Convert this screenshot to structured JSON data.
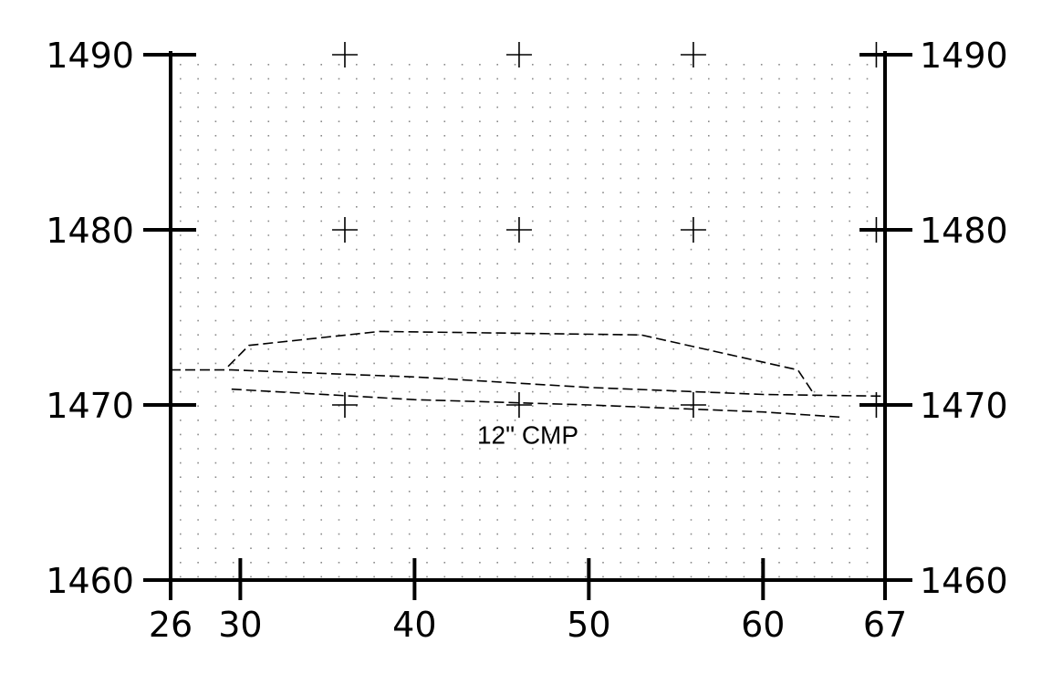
{
  "chart_data": {
    "type": "line",
    "title": "",
    "xlabel": "",
    "ylabel": "",
    "xlim": [
      26,
      67
    ],
    "ylim": [
      1460,
      1490
    ],
    "x_ticks_major": [
      26,
      30,
      40,
      50,
      60,
      67
    ],
    "x_tick_labels": [
      "26",
      "30",
      "40",
      "50",
      "60",
      "67"
    ],
    "y_ticks": [
      1460,
      1470,
      1480,
      1490
    ],
    "y_tick_labels_left": [
      "1460",
      "1470",
      "1480",
      "1490"
    ],
    "y_tick_labels_right": [
      "1460",
      "1470",
      "1480",
      "1490"
    ],
    "cross_marks_x": [
      36,
      46,
      56,
      66.5
    ],
    "cross_marks_y": [
      1470,
      1480,
      1490
    ],
    "grid": "dotted",
    "line_style": "dashed",
    "series": [
      {
        "values": [
          [
            26,
            1472.0
          ],
          [
            29.5,
            1472.0
          ],
          [
            40,
            1471.6
          ],
          [
            50,
            1471.0
          ],
          [
            60,
            1470.6
          ],
          [
            67,
            1470.5
          ]
        ]
      },
      {
        "values": [
          [
            29.3,
            1472.2
          ],
          [
            30.5,
            1473.4
          ],
          [
            38,
            1474.2
          ],
          [
            53,
            1474.0
          ],
          [
            62,
            1472.0
          ],
          [
            63,
            1470.5
          ]
        ]
      },
      {
        "values": [
          [
            29.5,
            1470.9
          ],
          [
            40,
            1470.3
          ],
          [
            50,
            1470.0
          ],
          [
            60,
            1469.6
          ],
          [
            64.5,
            1469.3
          ]
        ]
      }
    ],
    "annotations": [
      {
        "text": "12\" CMP",
        "x": 46.5,
        "y": 1468.3
      }
    ]
  }
}
